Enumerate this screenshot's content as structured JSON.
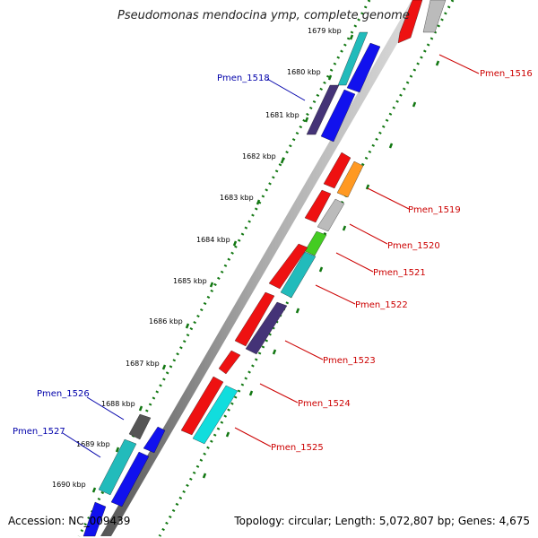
{
  "title": "Pseudomonas mendocina ymp, complete genome",
  "accession": "Accession: NC_009439",
  "summary": "Topology: circular; Length: 5,072,807 bp; Genes: 4,675",
  "ticks": [
    "1679 kbp",
    "1680 kbp",
    "1681 kbp",
    "1682 kbp",
    "1683 kbp",
    "1684 kbp",
    "1685 kbp",
    "1686 kbp",
    "1687 kbp",
    "1688 kbp",
    "1689 kbp",
    "1690 kbp"
  ],
  "gene_labels": {
    "Pmen_1516": "Pmen_1516",
    "Pmen_1518": "Pmen_1518",
    "Pmen_1519": "Pmen_1519",
    "Pmen_1520": "Pmen_1520",
    "Pmen_1521": "Pmen_1521",
    "Pmen_1522": "Pmen_1522",
    "Pmen_1523": "Pmen_1523",
    "Pmen_1524": "Pmen_1524",
    "Pmen_1525": "Pmen_1525",
    "Pmen_1526": "Pmen_1526",
    "Pmen_1527": "Pmen_1527"
  },
  "colors": {
    "red": "#ee1111",
    "blue": "#1111ee",
    "cyan": "#11dddd",
    "teal": "#22bbbb",
    "navy": "#443377",
    "gray": "#bbbbbb",
    "dark_gray": "#555555",
    "orange": "#ff9922",
    "green": "#44cc22",
    "backbone": "#888888",
    "tick_dots": "#117711",
    "label_red": "#cc0000",
    "label_blue": "#0000aa"
  }
}
